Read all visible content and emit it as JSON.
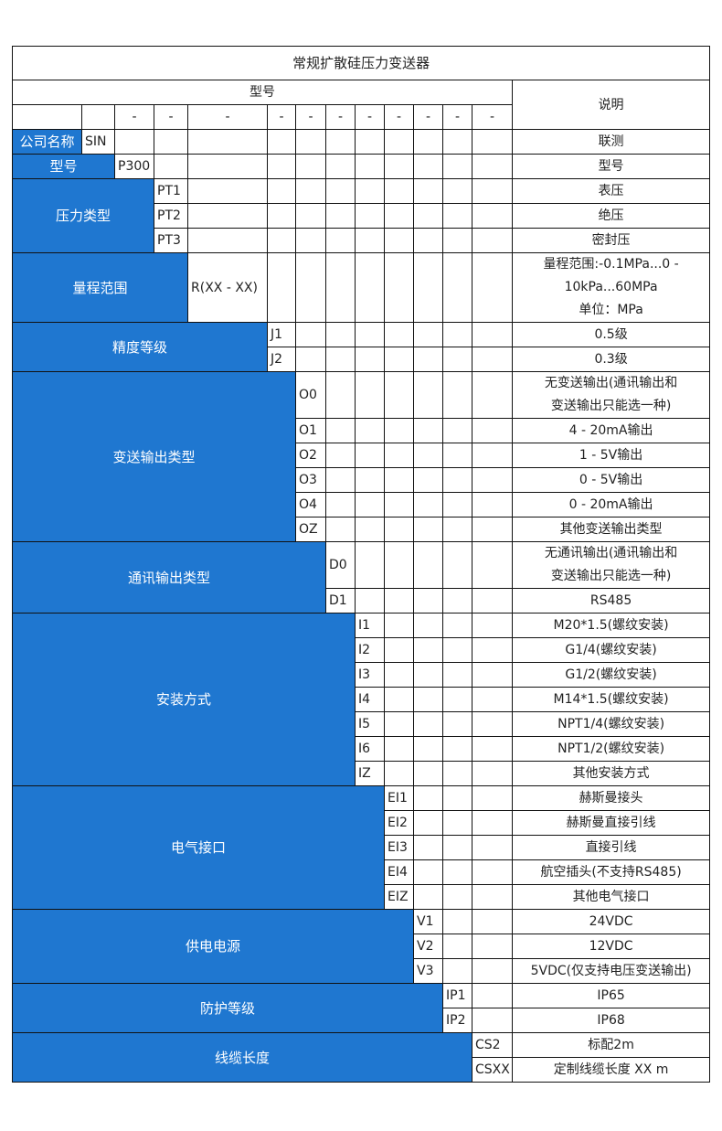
{
  "title": "常规扩散硅压力变送器",
  "header": {
    "model_label": "型号",
    "description_label": "说明",
    "separator": "-"
  },
  "colors": {
    "label_bg": "#1f77d0",
    "label_text": "#ffffff",
    "border": "#111111"
  },
  "groups": [
    {
      "label": "公司名称",
      "items": [
        {
          "code": "SIN",
          "desc": "联测"
        }
      ]
    },
    {
      "label": "型号",
      "items": [
        {
          "code": "P300",
          "desc": "型号"
        }
      ]
    },
    {
      "label": "压力类型",
      "items": [
        {
          "code": "PT1",
          "desc": "表压"
        },
        {
          "code": "PT2",
          "desc": "绝压"
        },
        {
          "code": "PT3",
          "desc": "密封压"
        }
      ]
    },
    {
      "label": "量程范围",
      "items": [
        {
          "code": "R(XX - XX)",
          "desc": "量程范围:-0.1MPa...0 -\n10kPa...60MPa\n单位：MPa"
        }
      ]
    },
    {
      "label": "精度等级",
      "items": [
        {
          "code": "J1",
          "desc": "0.5级"
        },
        {
          "code": "J2",
          "desc": "0.3级"
        }
      ]
    },
    {
      "label": "变送输出类型",
      "items": [
        {
          "code": "O0",
          "desc": "无变送输出(通讯输出和\n变送输出只能选一种)"
        },
        {
          "code": "O1",
          "desc": "4 - 20mA输出"
        },
        {
          "code": "O2",
          "desc": "1 - 5V输出"
        },
        {
          "code": "O3",
          "desc": "0 - 5V输出"
        },
        {
          "code": "O4",
          "desc": "0 - 20mA输出"
        },
        {
          "code": "OZ",
          "desc": "其他变送输出类型"
        }
      ]
    },
    {
      "label": "通讯输出类型",
      "items": [
        {
          "code": "D0",
          "desc": "无通讯输出(通讯输出和\n变送输出只能选一种)"
        },
        {
          "code": "D1",
          "desc": "RS485"
        }
      ]
    },
    {
      "label": "安装方式",
      "items": [
        {
          "code": "I1",
          "desc": "M20*1.5(螺纹安装)"
        },
        {
          "code": "I2",
          "desc": "G1/4(螺纹安装)"
        },
        {
          "code": "I3",
          "desc": "G1/2(螺纹安装)"
        },
        {
          "code": "I4",
          "desc": "M14*1.5(螺纹安装)"
        },
        {
          "code": "I5",
          "desc": "NPT1/4(螺纹安装)"
        },
        {
          "code": "I6",
          "desc": "NPT1/2(螺纹安装)"
        },
        {
          "code": "IZ",
          "desc": "其他安装方式"
        }
      ]
    },
    {
      "label": "电气接口",
      "items": [
        {
          "code": "EI1",
          "desc": "赫斯曼接头"
        },
        {
          "code": "EI2",
          "desc": "赫斯曼直接引线"
        },
        {
          "code": "EI3",
          "desc": "直接引线"
        },
        {
          "code": "EI4",
          "desc": "航空插头(不支持RS485)"
        },
        {
          "code": "EIZ",
          "desc": "其他电气接口"
        }
      ]
    },
    {
      "label": "供电电源",
      "items": [
        {
          "code": "V1",
          "desc": "24VDC"
        },
        {
          "code": "V2",
          "desc": "12VDC"
        },
        {
          "code": "V3",
          "desc": "5VDC(仅支持电压变送输出)"
        }
      ]
    },
    {
      "label": "防护等级",
      "items": [
        {
          "code": "IP1",
          "desc": "IP65"
        },
        {
          "code": "IP2",
          "desc": "IP68"
        }
      ]
    },
    {
      "label": "线缆长度",
      "items": [
        {
          "code": "CS2",
          "desc": "标配2m"
        },
        {
          "code": "CSXX",
          "desc": "定制线缆长度 XX m"
        }
      ]
    }
  ]
}
